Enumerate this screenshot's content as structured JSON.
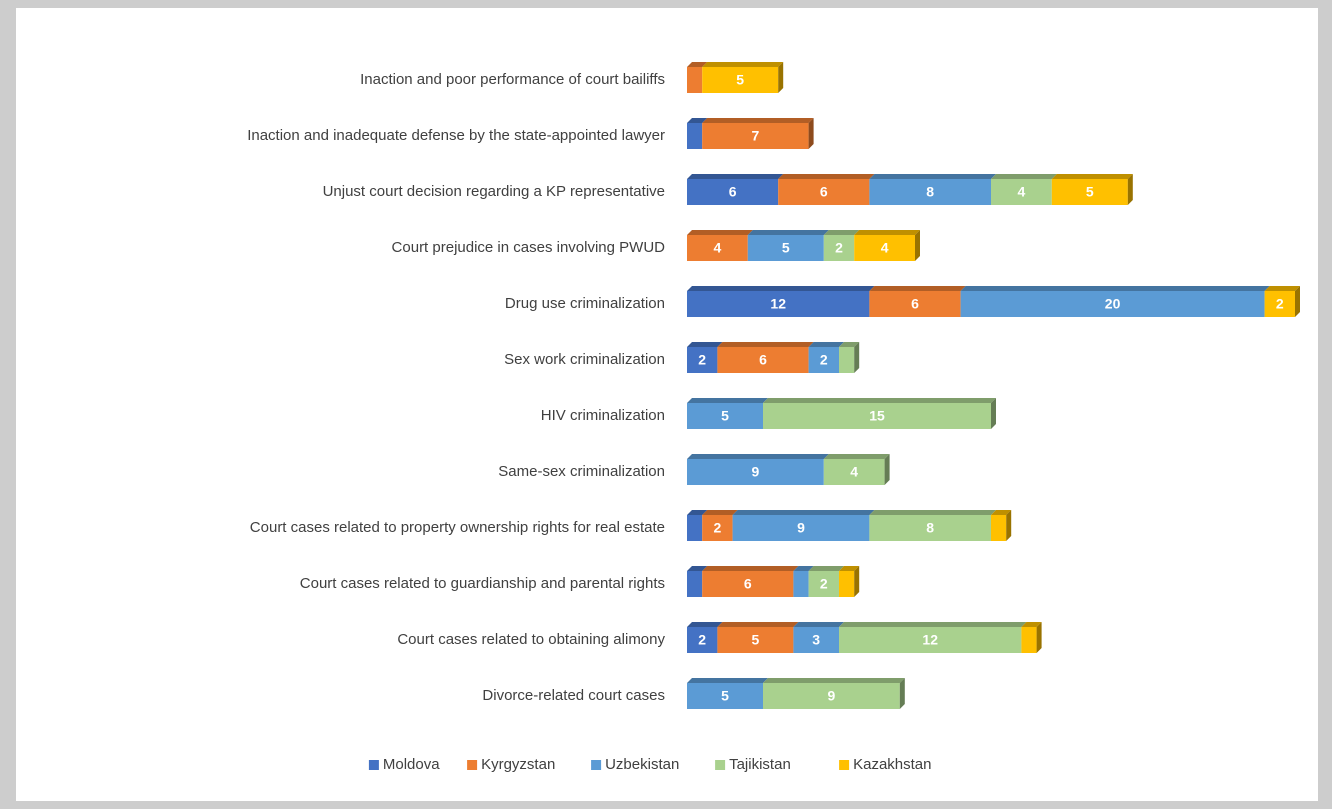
{
  "chart_data": {
    "type": "stacked-bar-horizontal",
    "categories": [
      "Inaction and poor performance of court bailiffs",
      "Inaction and inadequate defense by the state-appointed lawyer",
      "Unjust court decision regarding a KP representative",
      "Court prejudice in cases involving PWUD",
      "Drug use criminalization",
      "Sex work criminalization",
      "HIV criminalization",
      "Same-sex criminalization",
      "Court cases related to property ownership rights for real estate",
      "Court cases related to guardianship and parental rights",
      "Court cases related to obtaining alimony",
      "Divorce-related court cases"
    ],
    "series": [
      {
        "name": "Moldova",
        "color": "#4472c4",
        "values": [
          null,
          1,
          6,
          null,
          12,
          2,
          null,
          null,
          1,
          1,
          2,
          null
        ]
      },
      {
        "name": "Kyrgyzstan",
        "color": "#ed7d31",
        "values": [
          1,
          7,
          6,
          4,
          6,
          6,
          null,
          null,
          2,
          6,
          5,
          null
        ]
      },
      {
        "name": "Uzbekistan",
        "color": "#5b9bd5",
        "values": [
          null,
          null,
          8,
          5,
          20,
          2,
          5,
          9,
          9,
          1,
          3,
          5
        ]
      },
      {
        "name": "Tajikistan",
        "color": "#a9d18e",
        "values": [
          null,
          null,
          4,
          2,
          null,
          1,
          15,
          4,
          8,
          2,
          12,
          9
        ]
      },
      {
        "name": "Kazakhstan",
        "color": "#ffc000",
        "values": [
          5,
          null,
          5,
          4,
          2,
          null,
          null,
          null,
          1,
          1,
          1,
          null
        ]
      }
    ],
    "xlim": [
      0,
      40
    ],
    "legend": "bottom"
  }
}
